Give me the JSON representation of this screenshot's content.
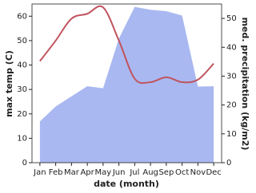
{
  "chart_data": {
    "type": "line",
    "x_label": "date (month)",
    "y_label": "max temp (C)",
    "y2_label": "med. precipitation (kg/m2)",
    "categories": [
      "Jan",
      "Feb",
      "Mar",
      "Apr",
      "May",
      "Jun",
      "Jul",
      "Aug",
      "Sep",
      "Oct",
      "Nov",
      "Dec"
    ],
    "series": [
      {
        "name": "med. precipitation",
        "color": "#a9b8f0",
        "axis": "y2",
        "values": [
          14.3,
          19.5,
          23,
          26.5,
          25.8,
          43,
          54,
          53,
          52.5,
          51,
          26.4,
          26.5
        ]
      },
      {
        "name": "max temp",
        "color": "#c0545e",
        "values": [
          41.6,
          50,
          59,
          61,
          63.6,
          50,
          34.4,
          33,
          35,
          33,
          34,
          40.6
        ]
      }
    ],
    "ylim": [
      0,
      65
    ],
    "yticks": [
      0,
      10,
      20,
      30,
      40,
      50,
      60
    ],
    "y2lim": [
      0,
      55
    ],
    "y2ticks": [
      0,
      10,
      20,
      30,
      40,
      50
    ]
  }
}
